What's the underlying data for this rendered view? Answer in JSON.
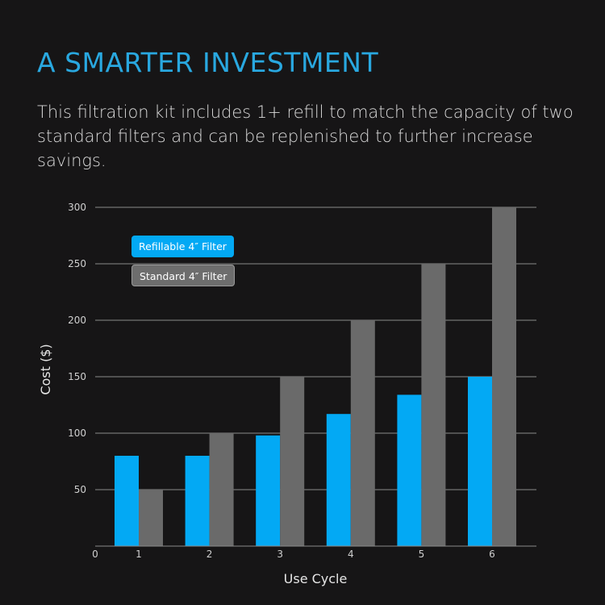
{
  "headline": "A SMARTER INVESTMENT",
  "description": "This filtration kit includes 1+ refill to match the capacity of two standard filters and can be replenished to further increase savings.",
  "colors": {
    "refillable": "#03a9f4",
    "standard": "#6a6a6a",
    "headline": "#29a8e0",
    "background": "#161516"
  },
  "chart_data": {
    "type": "bar",
    "xlabel": "Use Cycle",
    "ylabel": "Cost ($)",
    "categories": [
      "1",
      "2",
      "3",
      "4",
      "5",
      "6"
    ],
    "x_origin_label": "0",
    "ylim": [
      0,
      300
    ],
    "yticks": [
      50,
      100,
      150,
      200,
      250,
      300
    ],
    "grid": "horizontal",
    "legend_position": "top-left",
    "series": [
      {
        "name": "Refillable 4″ Filter",
        "values": [
          80,
          80,
          98,
          117,
          134,
          150
        ]
      },
      {
        "name": "Standard 4″ Filter",
        "values": [
          50,
          100,
          150,
          200,
          250,
          300
        ]
      }
    ]
  }
}
